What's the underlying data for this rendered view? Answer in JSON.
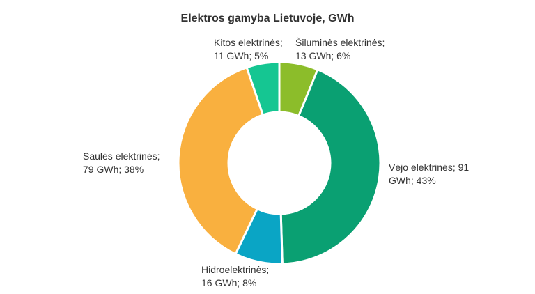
{
  "chart_data": {
    "type": "pie",
    "variant": "donut",
    "title": "Elektros gamyba Lietuvoje, GWh",
    "unit": "GWh",
    "slices": [
      {
        "name": "Šiluminės elektrinės",
        "value": 13,
        "percent": 6,
        "color": "#8cbd2a",
        "label_lines": [
          "Šiluminės elektrinės;",
          "13 GWh; 6%"
        ]
      },
      {
        "name": "Vėjo elektrinės",
        "value": 91,
        "percent": 43,
        "color": "#0aa072",
        "label_lines": [
          "Vėjo elektrinės; 91",
          "GWh; 43%"
        ]
      },
      {
        "name": "Hidroelektrinės",
        "value": 16,
        "percent": 8,
        "color": "#0aa5c5",
        "label_lines": [
          "Hidroelektrinės;",
          "16 GWh; 8%"
        ]
      },
      {
        "name": "Saulės elektrinės",
        "value": 79,
        "percent": 38,
        "color": "#f9b03f",
        "label_lines": [
          "Saulės elektrinės;",
          "79 GWh; 38%"
        ]
      },
      {
        "name": "Kitos elektrinės",
        "value": 11,
        "percent": 5,
        "color": "#15c692",
        "label_lines": [
          "Kitos elektrinės;",
          "11 GWh; 5%"
        ]
      }
    ]
  }
}
